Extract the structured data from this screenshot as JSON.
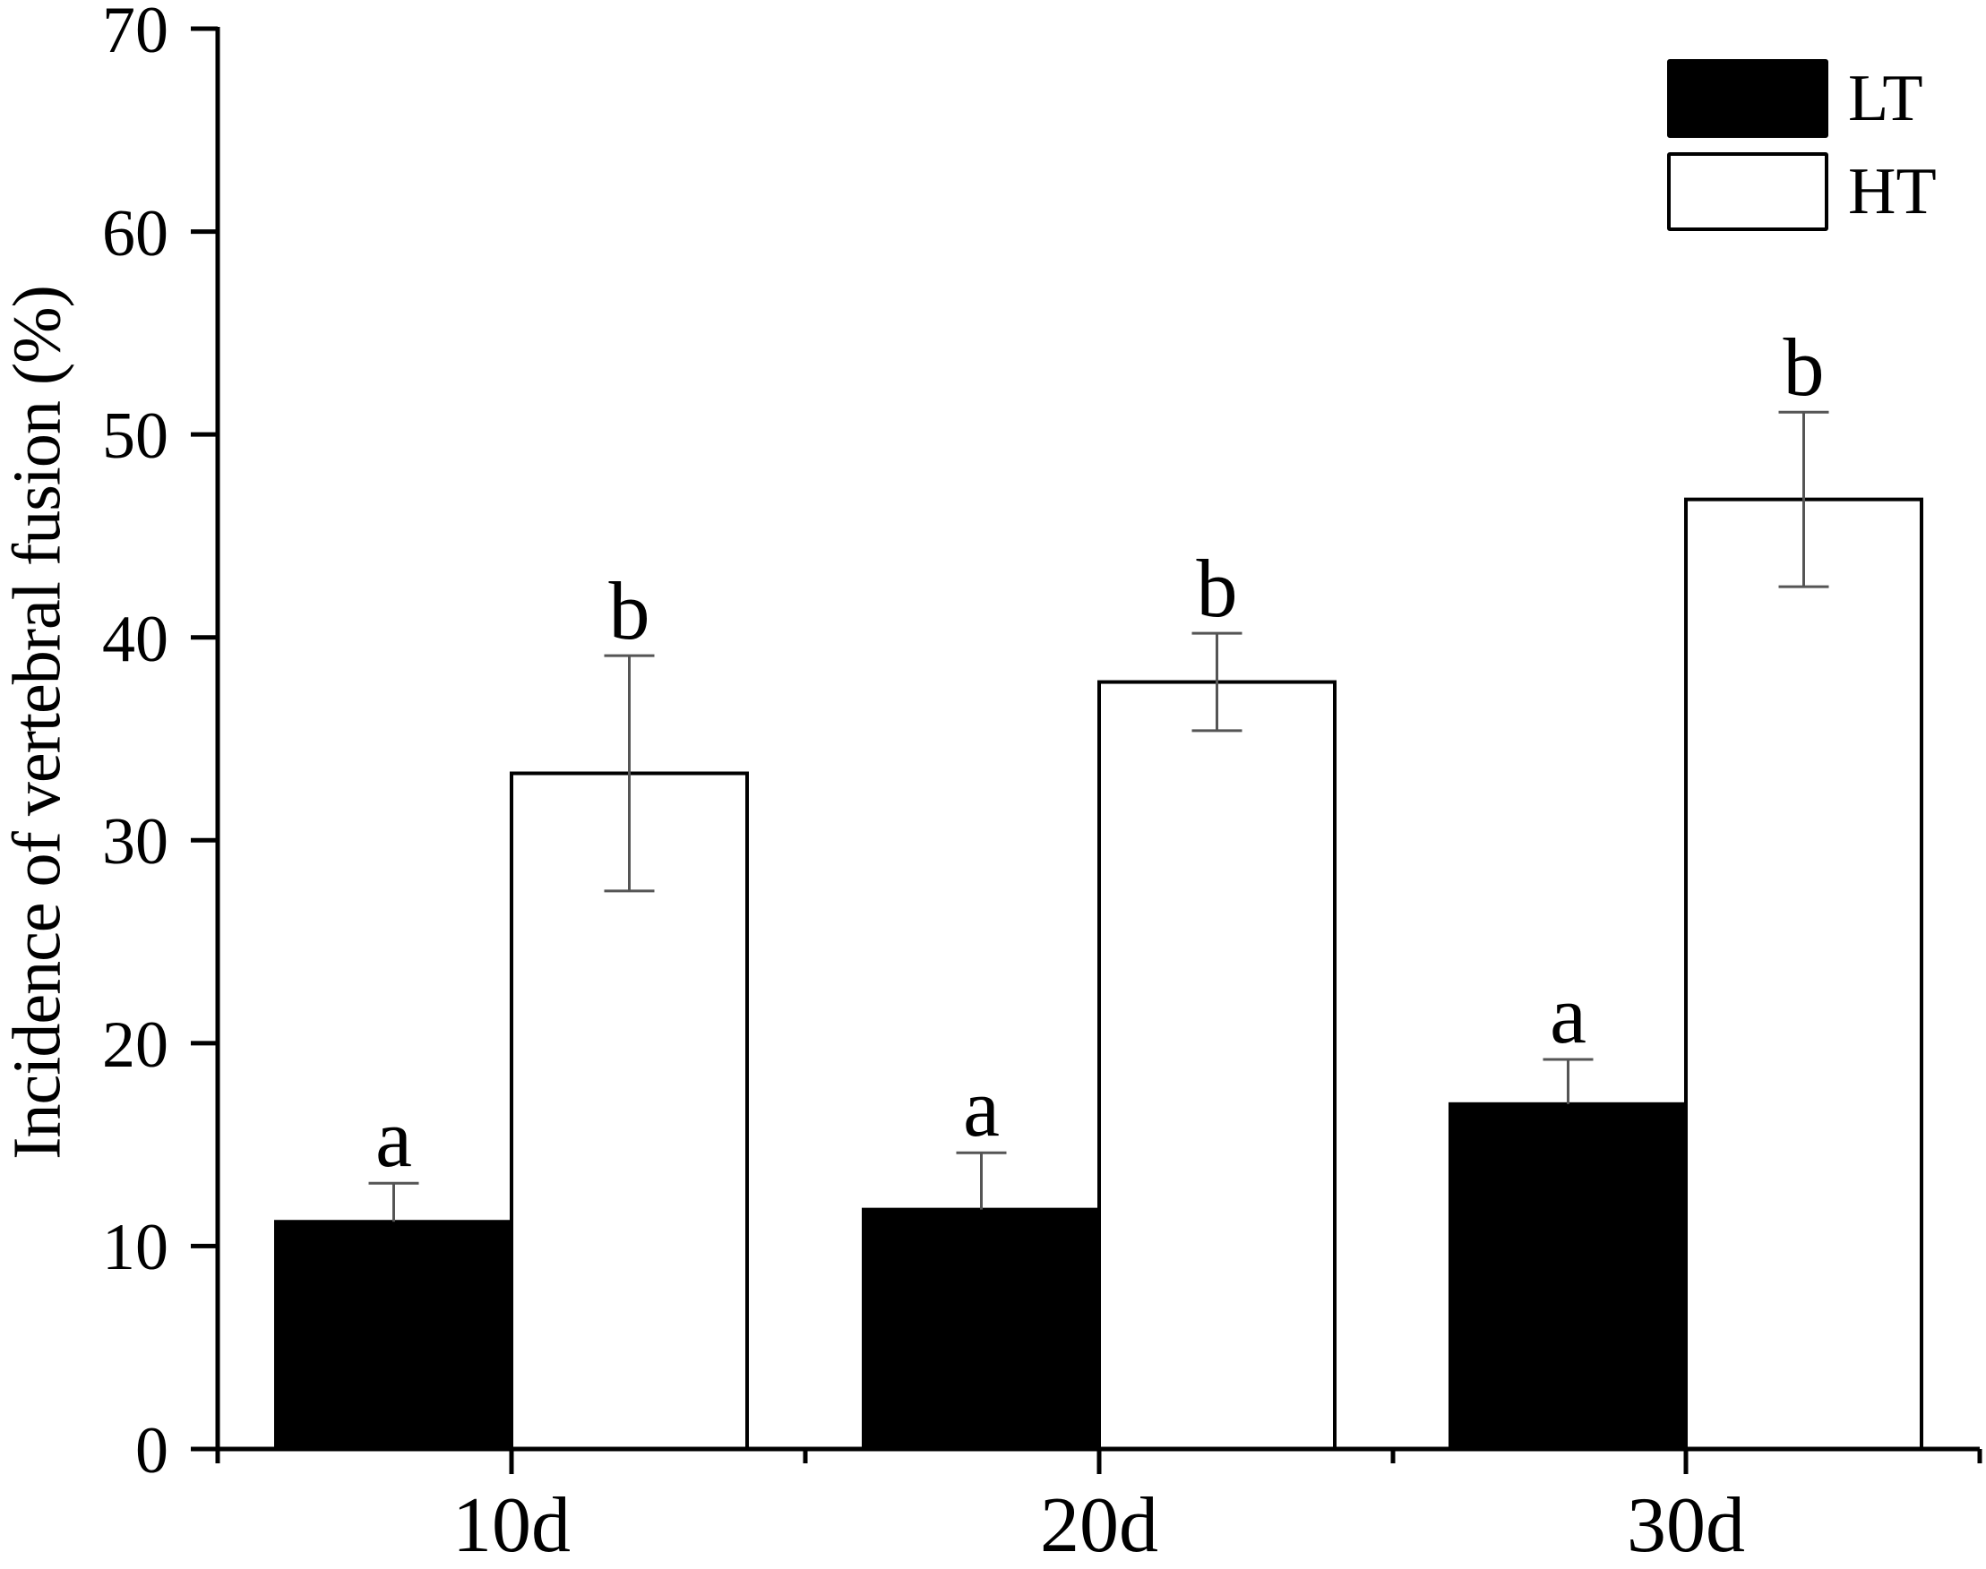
{
  "chart_data": {
    "type": "bar",
    "title": "",
    "xlabel": "",
    "ylabel": "Incidence of vertebral fusion (%)",
    "ylim": [
      0,
      70
    ],
    "yticks": [
      0,
      10,
      20,
      30,
      40,
      50,
      60,
      70
    ],
    "categories": [
      "10d",
      "20d",
      "30d"
    ],
    "grid": false,
    "legend_position": "top-right",
    "series": [
      {
        "name": "LT",
        "fill": "#000000",
        "values": [
          11.2,
          11.8,
          17.0
        ],
        "error": [
          1.9,
          2.8,
          2.2
        ],
        "significance": [
          "a",
          "a",
          "a"
        ]
      },
      {
        "name": "HT",
        "fill": "#ffffff",
        "values": [
          33.3,
          37.8,
          46.8
        ],
        "error": [
          5.8,
          2.4,
          4.3
        ],
        "significance": [
          "b",
          "b",
          "b"
        ]
      }
    ]
  },
  "axes": {
    "y_title": "Incidence of vertebral fusion (%)",
    "y_ticks": [
      "0",
      "10",
      "20",
      "30",
      "40",
      "50",
      "60",
      "70"
    ],
    "x_ticks": [
      "10d",
      "20d",
      "30d"
    ]
  },
  "legend": {
    "items": [
      {
        "label": "LT",
        "color": "#000000"
      },
      {
        "label": "HT",
        "color": "#ffffff"
      }
    ]
  },
  "colors": {
    "axis": "#000000",
    "lt_fill": "#000000",
    "ht_fill": "#ffffff",
    "error_bar": "#555555"
  }
}
